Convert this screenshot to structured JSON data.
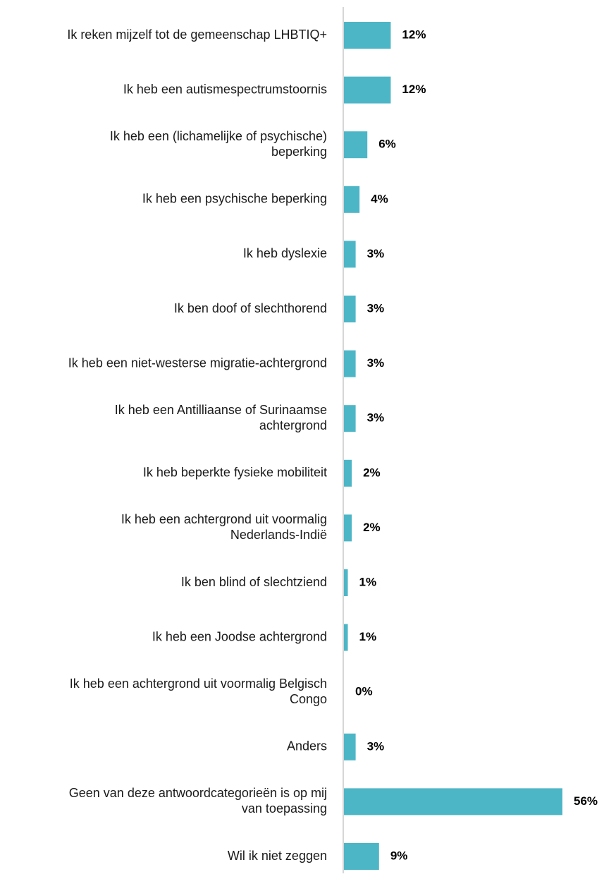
{
  "chart_data": {
    "type": "bar",
    "orientation": "horizontal",
    "categories": [
      [
        "Ik reken mijzelf tot de gemeenschap LHBTIQ+"
      ],
      [
        "Ik heb een autismespectrumstoornis"
      ],
      [
        "Ik heb een (lichamelijke of psychische)",
        "beperking"
      ],
      [
        "Ik heb een psychische beperking"
      ],
      [
        "Ik heb dyslexie"
      ],
      [
        "Ik ben doof of slechthorend"
      ],
      [
        "Ik heb een niet-westerse migratie-achtergrond"
      ],
      [
        "Ik heb een Antilliaanse of Surinaamse",
        "achtergrond"
      ],
      [
        "Ik heb beperkte fysieke mobiliteit"
      ],
      [
        "Ik heb een achtergrond uit voormalig",
        "Nederlands-Indië"
      ],
      [
        "Ik ben blind of slechtziend"
      ],
      [
        "Ik heb een Joodse achtergrond"
      ],
      [
        "Ik heb een achtergrond uit voormalig Belgisch",
        "Congo"
      ],
      [
        "Anders"
      ],
      [
        "Geen van deze antwoordcategorieën is op mij",
        "van toepassing"
      ],
      [
        "Wil ik niet zeggen"
      ]
    ],
    "values": [
      12,
      12,
      6,
      4,
      3,
      3,
      3,
      3,
      2,
      2,
      1,
      1,
      0,
      3,
      56,
      9
    ],
    "value_labels": [
      "12%",
      "12%",
      "6%",
      "4%",
      "3%",
      "3%",
      "3%",
      "3%",
      "2%",
      "2%",
      "1%",
      "1%",
      "0%",
      "3%",
      "56%",
      "9%"
    ],
    "xlim": [
      0,
      56
    ],
    "grid": false,
    "colors": {
      "bar": "#4db6c6",
      "axis": "#c8c8c8"
    }
  }
}
